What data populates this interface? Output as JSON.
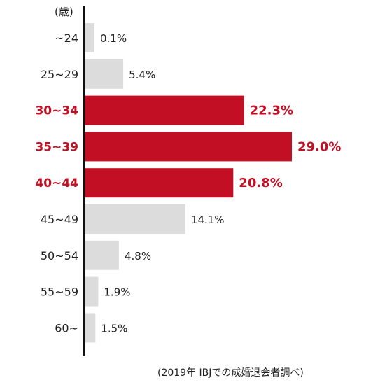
{
  "chart_data": {
    "type": "bar",
    "orientation": "horizontal",
    "yunit": "(歳)",
    "categories": [
      "~24",
      "25~29",
      "30~34",
      "35~39",
      "40~44",
      "45~49",
      "50~54",
      "55~59",
      "60~"
    ],
    "values": [
      0.1,
      5.4,
      22.3,
      29.0,
      20.8,
      14.1,
      4.8,
      1.9,
      1.5
    ],
    "value_labels": [
      "0.1%",
      "5.4%",
      "22.3%",
      "29.0%",
      "20.8%",
      "14.1%",
      "4.8%",
      "1.9%",
      "1.5%"
    ],
    "highlighted": [
      false,
      false,
      true,
      true,
      true,
      false,
      false,
      false,
      false
    ],
    "unit": "%",
    "source_note": "(2019年 IBJでの成婚退会者調べ)",
    "colors": {
      "highlight": "#c20f23",
      "normal": "#dcdcdc",
      "text": "#222222",
      "axis": "#111111"
    }
  }
}
